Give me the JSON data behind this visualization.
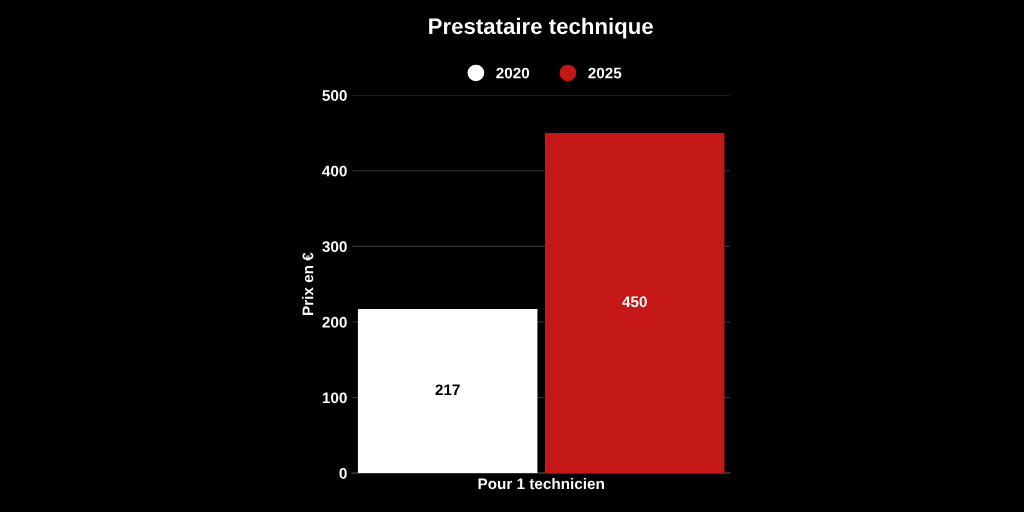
{
  "chart_data": {
    "type": "bar",
    "title": "Prestataire technique",
    "ylabel": "Prix en €",
    "categories": [
      "Pour 1 technicien"
    ],
    "series": [
      {
        "name": "2020",
        "color": "#ffffff",
        "values": [
          217
        ]
      },
      {
        "name": "2025",
        "color": "#c41718",
        "values": [
          450
        ]
      }
    ],
    "ylim": [
      0,
      500
    ],
    "yticks": [
      0,
      100,
      200,
      300,
      400,
      500
    ],
    "grid": "y",
    "legend": "top",
    "marker": "circle",
    "data_labels": true
  }
}
